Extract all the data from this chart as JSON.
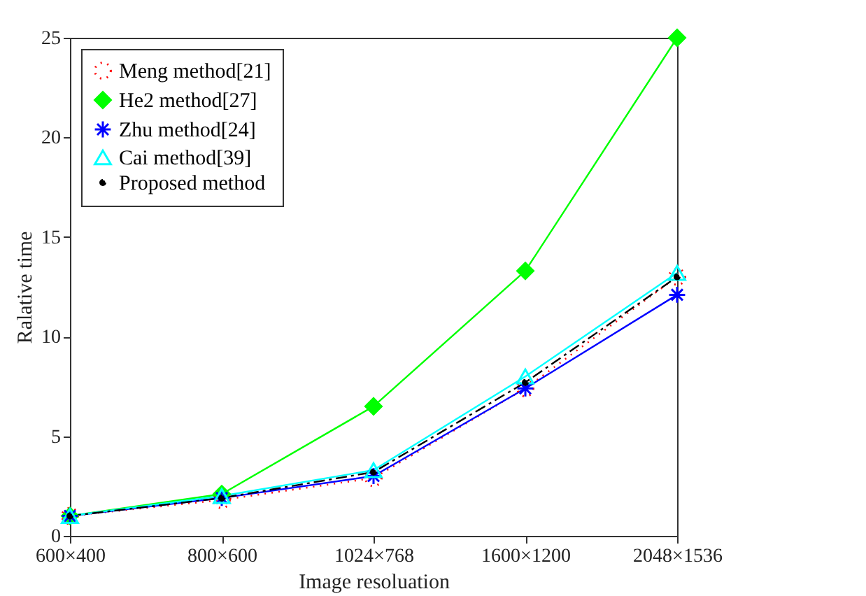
{
  "chart_data": {
    "type": "line",
    "xlabel": "Image resoluation",
    "ylabel": "Ralative time",
    "categories": [
      "600×400",
      "800×600",
      "1024×768",
      "1600×1200",
      "2048×1536"
    ],
    "ylim": [
      0,
      25
    ],
    "yticks": [
      0,
      5,
      10,
      15,
      20,
      25
    ],
    "legend": "top left",
    "series": [
      {
        "name": "Meng method[21]",
        "color": "#ff0000",
        "marker": "circle",
        "line_style": "dotted",
        "values": [
          1,
          1.8,
          2.9,
          7.4,
          13
        ]
      },
      {
        "name": "He2 method[27]",
        "color": "#00ff00",
        "marker": "diamond",
        "line_style": "solid",
        "values": [
          1,
          2.1,
          6.5,
          13.3,
          25
        ]
      },
      {
        "name": "Zhu method[24]",
        "color": "#0000ff",
        "marker": "cross",
        "line_style": "solid",
        "values": [
          1,
          1.9,
          3.0,
          7.4,
          12.1
        ]
      },
      {
        "name": "Cai method[39]",
        "color": "#00ffff",
        "marker": "triangle",
        "line_style": "solid",
        "values": [
          1,
          2.0,
          3.3,
          8.0,
          13.2
        ]
      },
      {
        "name": "Proposed method",
        "color": "#000000",
        "marker": "circle",
        "line_style": "dashed",
        "values": [
          1,
          1.9,
          3.2,
          7.7,
          13.0
        ]
      }
    ]
  }
}
